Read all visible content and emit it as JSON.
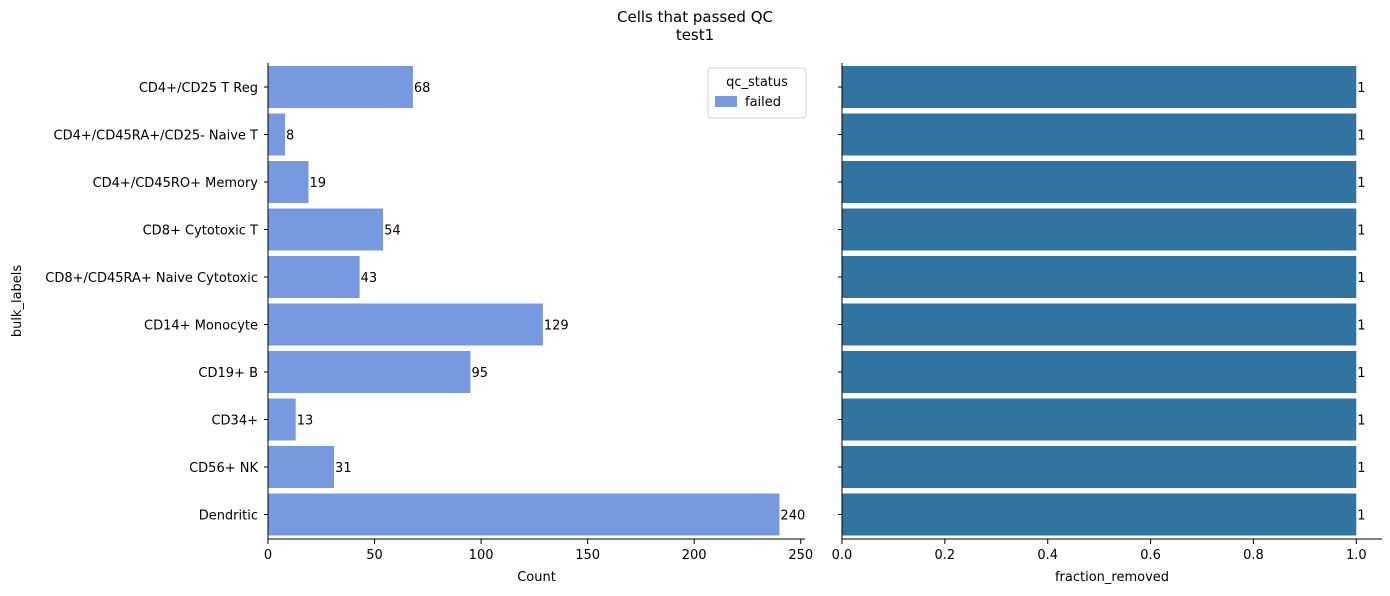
{
  "figure": {
    "title": "Cells that passed QC",
    "subtitle": "test1"
  },
  "colors": {
    "count_bar": "#7799e0",
    "fraction_bar": "#3274a1",
    "axis": "#000000"
  },
  "chart_data": [
    {
      "type": "bar",
      "orientation": "horizontal",
      "categories": [
        "CD4+/CD25 T Reg",
        "CD4+/CD45RA+/CD25- Naive T",
        "CD4+/CD45RO+ Memory",
        "CD8+ Cytotoxic T",
        "CD8+/CD45RA+ Naive Cytotoxic",
        "CD14+ Monocyte",
        "CD19+ B",
        "CD34+",
        "CD56+ NK",
        "Dendritic"
      ],
      "series": [
        {
          "name": "failed",
          "values": [
            68,
            8,
            19,
            54,
            43,
            129,
            95,
            13,
            31,
            240
          ]
        }
      ],
      "data_labels": [
        "68",
        "8",
        "19",
        "54",
        "43",
        "129",
        "95",
        "13",
        "31",
        "240"
      ],
      "xlabel": "Count",
      "ylabel": "bulk_labels",
      "xlim": [
        0,
        252
      ],
      "xticks": [
        0,
        50,
        100,
        150,
        200,
        250
      ],
      "xtick_labels": [
        "0",
        "50",
        "100",
        "150",
        "200",
        "250"
      ],
      "legend": {
        "title": "qc_status",
        "entries": [
          "failed"
        ],
        "placement": "top-right"
      },
      "grid": false
    },
    {
      "type": "bar",
      "orientation": "horizontal",
      "categories": [
        "CD4+/CD25 T Reg",
        "CD4+/CD45RA+/CD25- Naive T",
        "CD4+/CD45RO+ Memory",
        "CD8+ Cytotoxic T",
        "CD8+/CD45RA+ Naive Cytotoxic",
        "CD14+ Monocyte",
        "CD19+ B",
        "CD34+",
        "CD56+ NK",
        "Dendritic"
      ],
      "values": [
        1,
        1,
        1,
        1,
        1,
        1,
        1,
        1,
        1,
        1
      ],
      "data_labels": [
        "1",
        "1",
        "1",
        "1",
        "1",
        "1",
        "1",
        "1",
        "1",
        "1"
      ],
      "xlabel": "fraction_removed",
      "xlim": [
        0,
        1.05
      ],
      "xticks": [
        0,
        0.2,
        0.4,
        0.6,
        0.8,
        1.0
      ],
      "xtick_labels": [
        "0.0",
        "0.2",
        "0.4",
        "0.6",
        "0.8",
        "1.0"
      ],
      "grid": false
    }
  ]
}
